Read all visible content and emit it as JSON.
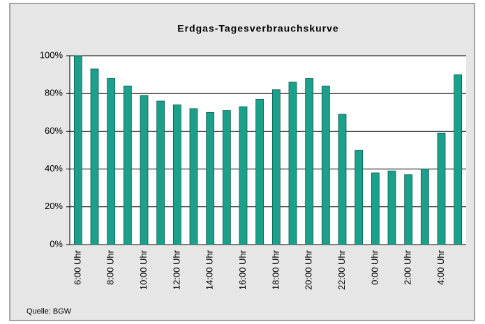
{
  "chart_data": {
    "type": "bar",
    "title": "Erdgas-Tagesverbrauchskurve",
    "source": "Quelle: BGW",
    "categories": [
      "6:00 Uhr",
      null,
      "8:00 Uhr",
      null,
      "10:00 Uhr",
      null,
      "12:00 Uhr",
      null,
      "14:00 Uhr",
      null,
      "16:00 Uhr",
      null,
      "18:00 Uhr",
      null,
      "20:00 Uhr",
      null,
      "22:00 Uhr",
      null,
      "0:00 Uhr",
      null,
      "2:00 Uhr",
      null,
      "4:00 Uhr",
      null
    ],
    "values": [
      100,
      93,
      88,
      84,
      79,
      76,
      74,
      72,
      70,
      71,
      73,
      77,
      82,
      86,
      88,
      84,
      69,
      50,
      38,
      39,
      37,
      40,
      59,
      90
    ],
    "color": "#1ba08b",
    "ylim": [
      0,
      100
    ],
    "yticks": [
      {
        "value": 0,
        "label": "0%"
      },
      {
        "value": 20,
        "label": "20%"
      },
      {
        "value": 40,
        "label": "40%"
      },
      {
        "value": 60,
        "label": "60%"
      },
      {
        "value": 80,
        "label": "80%"
      },
      {
        "value": 100,
        "label": "100%"
      }
    ],
    "grid": true
  }
}
